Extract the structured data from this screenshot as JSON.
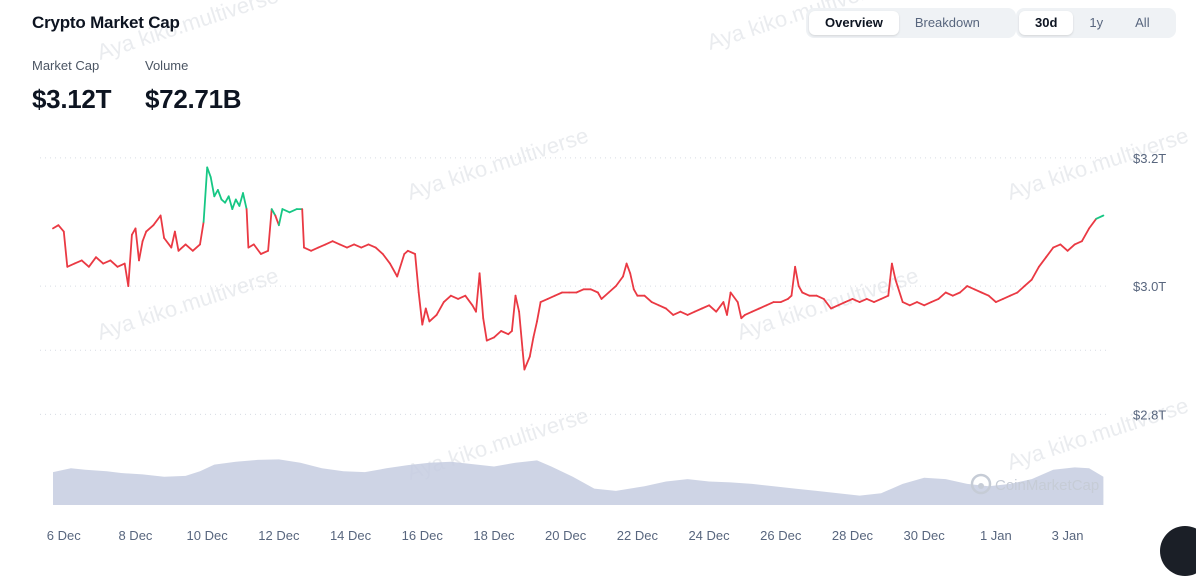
{
  "header": {
    "title": "Crypto Market Cap",
    "stats": [
      {
        "label": "Market Cap",
        "value": "$3.12T"
      },
      {
        "label": "Volume",
        "value": "$72.71B"
      }
    ]
  },
  "view_toggle": {
    "options": [
      "Overview",
      "Breakdown"
    ],
    "selected": "Overview"
  },
  "range_toggle": {
    "options": [
      "30d",
      "1y",
      "All"
    ],
    "selected": "30d"
  },
  "watermark_text": "Aya kiko.multiverse",
  "logo_text": "CoinMarketCap",
  "colors": {
    "up": "#16c784",
    "down": "#ea3943",
    "volume_fill": "#c6cde0",
    "grid": "#d7dce3"
  },
  "chart_data": {
    "type": "line",
    "title": "",
    "ylabel": "",
    "xlabel": "",
    "y_ticks": [
      {
        "value": 3.2,
        "label": "$3.2T"
      },
      {
        "value": 3.0,
        "label": "$3.0T"
      },
      {
        "value": 2.8,
        "label": "$2.8T"
      }
    ],
    "ylim": [
      2.76,
      3.22
    ],
    "x_ticks": [
      {
        "x": 0,
        "label": "6 Dec"
      },
      {
        "x": 2,
        "label": "8 Dec"
      },
      {
        "x": 4,
        "label": "10 Dec"
      },
      {
        "x": 6,
        "label": "12 Dec"
      },
      {
        "x": 8,
        "label": "14 Dec"
      },
      {
        "x": 10,
        "label": "16 Dec"
      },
      {
        "x": 12,
        "label": "18 Dec"
      },
      {
        "x": 14,
        "label": "20 Dec"
      },
      {
        "x": 16,
        "label": "22 Dec"
      },
      {
        "x": 18,
        "label": "24 Dec"
      },
      {
        "x": 20,
        "label": "26 Dec"
      },
      {
        "x": 22,
        "label": "28 Dec"
      },
      {
        "x": 24,
        "label": "30 Dec"
      },
      {
        "x": 26,
        "label": "1 Jan"
      },
      {
        "x": 28,
        "label": "3 Jan"
      }
    ],
    "xlim": [
      -0.3,
      29.1
    ],
    "grid": true,
    "reference_value": 3.115,
    "series": [
      {
        "name": "",
        "points": [
          [
            -0.3,
            3.09
          ],
          [
            -0.15,
            3.095
          ],
          [
            0,
            3.085
          ],
          [
            0.1,
            3.03
          ],
          [
            0.3,
            3.035
          ],
          [
            0.5,
            3.04
          ],
          [
            0.7,
            3.03
          ],
          [
            0.9,
            3.045
          ],
          [
            1.1,
            3.035
          ],
          [
            1.3,
            3.04
          ],
          [
            1.5,
            3.03
          ],
          [
            1.7,
            3.035
          ],
          [
            1.8,
            3.0
          ],
          [
            1.9,
            3.08
          ],
          [
            2.0,
            3.09
          ],
          [
            2.1,
            3.04
          ],
          [
            2.2,
            3.07
          ],
          [
            2.3,
            3.085
          ],
          [
            2.5,
            3.095
          ],
          [
            2.7,
            3.11
          ],
          [
            2.8,
            3.075
          ],
          [
            3.0,
            3.06
          ],
          [
            3.1,
            3.085
          ],
          [
            3.2,
            3.055
          ],
          [
            3.4,
            3.065
          ],
          [
            3.6,
            3.055
          ],
          [
            3.8,
            3.065
          ],
          [
            3.9,
            3.1
          ],
          [
            4.0,
            3.185
          ],
          [
            4.1,
            3.17
          ],
          [
            4.2,
            3.14
          ],
          [
            4.3,
            3.15
          ],
          [
            4.4,
            3.135
          ],
          [
            4.5,
            3.13
          ],
          [
            4.6,
            3.14
          ],
          [
            4.7,
            3.12
          ],
          [
            4.8,
            3.135
          ],
          [
            4.9,
            3.125
          ],
          [
            5.0,
            3.145
          ],
          [
            5.1,
            3.12
          ],
          [
            5.15,
            3.06
          ],
          [
            5.3,
            3.065
          ],
          [
            5.5,
            3.05
          ],
          [
            5.7,
            3.055
          ],
          [
            5.8,
            3.12
          ],
          [
            5.9,
            3.11
          ],
          [
            6.0,
            3.095
          ],
          [
            6.1,
            3.12
          ],
          [
            6.3,
            3.115
          ],
          [
            6.5,
            3.12
          ],
          [
            6.65,
            3.12
          ],
          [
            6.7,
            3.06
          ],
          [
            6.9,
            3.055
          ],
          [
            7.1,
            3.06
          ],
          [
            7.3,
            3.065
          ],
          [
            7.5,
            3.07
          ],
          [
            7.7,
            3.065
          ],
          [
            7.9,
            3.06
          ],
          [
            8.1,
            3.065
          ],
          [
            8.3,
            3.06
          ],
          [
            8.5,
            3.065
          ],
          [
            8.7,
            3.06
          ],
          [
            8.9,
            3.05
          ],
          [
            9.1,
            3.035
          ],
          [
            9.3,
            3.015
          ],
          [
            9.5,
            3.05
          ],
          [
            9.6,
            3.055
          ],
          [
            9.8,
            3.05
          ],
          [
            9.9,
            2.99
          ],
          [
            10.0,
            2.94
          ],
          [
            10.1,
            2.965
          ],
          [
            10.2,
            2.945
          ],
          [
            10.4,
            2.955
          ],
          [
            10.6,
            2.975
          ],
          [
            10.8,
            2.985
          ],
          [
            11.0,
            2.98
          ],
          [
            11.2,
            2.985
          ],
          [
            11.4,
            2.97
          ],
          [
            11.5,
            2.96
          ],
          [
            11.6,
            3.02
          ],
          [
            11.7,
            2.95
          ],
          [
            11.8,
            2.915
          ],
          [
            12.0,
            2.92
          ],
          [
            12.2,
            2.93
          ],
          [
            12.4,
            2.925
          ],
          [
            12.5,
            2.93
          ],
          [
            12.6,
            2.985
          ],
          [
            12.7,
            2.96
          ],
          [
            12.8,
            2.9
          ],
          [
            12.85,
            2.87
          ],
          [
            13.0,
            2.89
          ],
          [
            13.1,
            2.92
          ],
          [
            13.2,
            2.945
          ],
          [
            13.3,
            2.975
          ],
          [
            13.5,
            2.98
          ],
          [
            13.7,
            2.985
          ],
          [
            13.9,
            2.99
          ],
          [
            14.1,
            2.99
          ],
          [
            14.3,
            2.99
          ],
          [
            14.5,
            2.995
          ],
          [
            14.7,
            2.995
          ],
          [
            14.9,
            2.99
          ],
          [
            15.0,
            2.98
          ],
          [
            15.2,
            2.99
          ],
          [
            15.4,
            3.0
          ],
          [
            15.6,
            3.015
          ],
          [
            15.7,
            3.035
          ],
          [
            15.8,
            3.02
          ],
          [
            15.9,
            2.995
          ],
          [
            16.0,
            2.985
          ],
          [
            16.2,
            2.985
          ],
          [
            16.4,
            2.975
          ],
          [
            16.6,
            2.97
          ],
          [
            16.8,
            2.965
          ],
          [
            17.0,
            2.955
          ],
          [
            17.2,
            2.96
          ],
          [
            17.4,
            2.955
          ],
          [
            17.6,
            2.96
          ],
          [
            17.8,
            2.965
          ],
          [
            18.0,
            2.97
          ],
          [
            18.2,
            2.96
          ],
          [
            18.4,
            2.975
          ],
          [
            18.5,
            2.955
          ],
          [
            18.6,
            2.99
          ],
          [
            18.8,
            2.975
          ],
          [
            18.9,
            2.95
          ],
          [
            19.0,
            2.955
          ],
          [
            19.2,
            2.96
          ],
          [
            19.4,
            2.965
          ],
          [
            19.6,
            2.97
          ],
          [
            19.8,
            2.975
          ],
          [
            20.0,
            2.975
          ],
          [
            20.2,
            2.98
          ],
          [
            20.3,
            2.985
          ],
          [
            20.4,
            3.03
          ],
          [
            20.5,
            3.0
          ],
          [
            20.6,
            2.99
          ],
          [
            20.8,
            2.985
          ],
          [
            21.0,
            2.985
          ],
          [
            21.2,
            2.98
          ],
          [
            21.4,
            2.965
          ],
          [
            21.6,
            2.97
          ],
          [
            21.8,
            2.975
          ],
          [
            22.0,
            2.98
          ],
          [
            22.2,
            2.975
          ],
          [
            22.4,
            2.98
          ],
          [
            22.6,
            2.975
          ],
          [
            22.8,
            2.98
          ],
          [
            23.0,
            2.985
          ],
          [
            23.1,
            3.035
          ],
          [
            23.2,
            3.01
          ],
          [
            23.4,
            2.975
          ],
          [
            23.6,
            2.97
          ],
          [
            23.8,
            2.975
          ],
          [
            24.0,
            2.97
          ],
          [
            24.2,
            2.975
          ],
          [
            24.4,
            2.98
          ],
          [
            24.6,
            2.99
          ],
          [
            24.8,
            2.985
          ],
          [
            25.0,
            2.99
          ],
          [
            25.2,
            3.0
          ],
          [
            25.4,
            2.995
          ],
          [
            25.6,
            2.99
          ],
          [
            25.8,
            2.985
          ],
          [
            26.0,
            2.975
          ],
          [
            26.2,
            2.98
          ],
          [
            26.4,
            2.985
          ],
          [
            26.6,
            2.99
          ],
          [
            26.8,
            3.0
          ],
          [
            27.0,
            3.01
          ],
          [
            27.2,
            3.03
          ],
          [
            27.4,
            3.045
          ],
          [
            27.6,
            3.06
          ],
          [
            27.8,
            3.065
          ],
          [
            28.0,
            3.055
          ],
          [
            28.2,
            3.065
          ],
          [
            28.4,
            3.07
          ],
          [
            28.6,
            3.09
          ],
          [
            28.8,
            3.105
          ],
          [
            29.0,
            3.11
          ]
        ]
      }
    ],
    "volume_area": [
      [
        -0.3,
        0.7
      ],
      [
        0.2,
        0.78
      ],
      [
        0.6,
        0.75
      ],
      [
        1.2,
        0.72
      ],
      [
        1.6,
        0.68
      ],
      [
        2.2,
        0.65
      ],
      [
        2.8,
        0.6
      ],
      [
        3.4,
        0.62
      ],
      [
        3.8,
        0.72
      ],
      [
        4.2,
        0.86
      ],
      [
        4.8,
        0.92
      ],
      [
        5.4,
        0.96
      ],
      [
        6.0,
        0.97
      ],
      [
        6.6,
        0.9
      ],
      [
        7.2,
        0.78
      ],
      [
        7.8,
        0.72
      ],
      [
        8.4,
        0.7
      ],
      [
        9.0,
        0.78
      ],
      [
        9.6,
        0.85
      ],
      [
        10.2,
        0.9
      ],
      [
        10.8,
        0.92
      ],
      [
        11.4,
        0.87
      ],
      [
        12.0,
        0.82
      ],
      [
        12.6,
        0.9
      ],
      [
        13.2,
        0.95
      ],
      [
        13.6,
        0.82
      ],
      [
        14.2,
        0.6
      ],
      [
        14.8,
        0.35
      ],
      [
        15.4,
        0.3
      ],
      [
        16.2,
        0.4
      ],
      [
        16.8,
        0.5
      ],
      [
        17.4,
        0.55
      ],
      [
        18.0,
        0.5
      ],
      [
        18.6,
        0.48
      ],
      [
        19.2,
        0.45
      ],
      [
        19.8,
        0.4
      ],
      [
        20.4,
        0.35
      ],
      [
        21.0,
        0.3
      ],
      [
        21.6,
        0.25
      ],
      [
        22.2,
        0.2
      ],
      [
        22.8,
        0.25
      ],
      [
        23.4,
        0.45
      ],
      [
        24.0,
        0.58
      ],
      [
        24.6,
        0.55
      ],
      [
        25.2,
        0.45
      ],
      [
        25.8,
        0.4
      ],
      [
        26.4,
        0.45
      ],
      [
        27.0,
        0.55
      ],
      [
        27.6,
        0.75
      ],
      [
        28.2,
        0.8
      ],
      [
        28.6,
        0.78
      ],
      [
        29.0,
        0.6
      ]
    ]
  }
}
